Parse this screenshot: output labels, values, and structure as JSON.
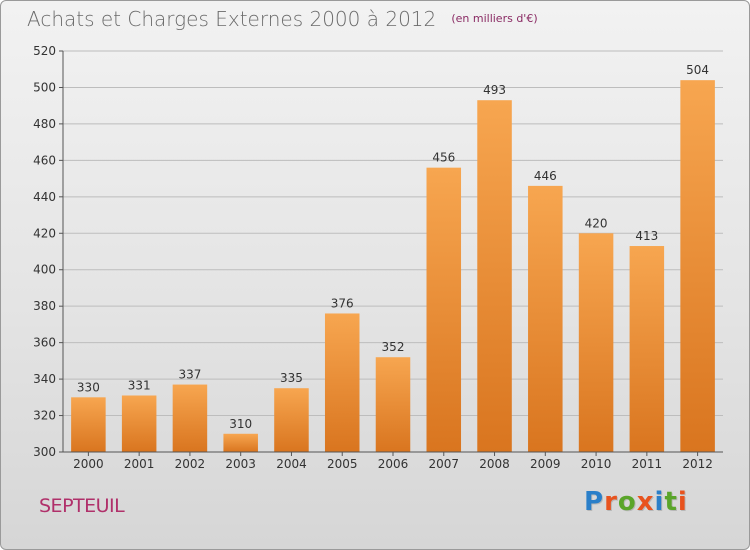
{
  "title": "Achats et Charges Externes 2000 à 2012",
  "subtitle": "(en milliers d'€)",
  "commune": "SEPTEUIL",
  "logo": {
    "text": "Proxiti",
    "colors": [
      "#2a7fc9",
      "#e8531e",
      "#5aa52a",
      "#e8531e",
      "#2a7fc9",
      "#5aa52a",
      "#e8531e"
    ]
  },
  "colors": {
    "bar_top": "#f7a650",
    "bar_bottom": "#d9751f",
    "axis": "#555555",
    "grid": "#bdbdbd",
    "tick_label": "#333333",
    "value_label": "#333333"
  },
  "chart_data": {
    "type": "bar",
    "title": "Achats et Charges Externes 2000 à 2012",
    "subtitle": "(en milliers d'€)",
    "categories": [
      "2000",
      "2001",
      "2002",
      "2003",
      "2004",
      "2005",
      "2006",
      "2007",
      "2008",
      "2009",
      "2010",
      "2011",
      "2012"
    ],
    "values": [
      330,
      331,
      337,
      310,
      335,
      376,
      352,
      456,
      493,
      446,
      420,
      413,
      504
    ],
    "ylim": [
      300,
      520
    ],
    "yticks": [
      300,
      320,
      340,
      360,
      380,
      400,
      420,
      440,
      460,
      480,
      500,
      520
    ],
    "grid": true,
    "legend": "none",
    "xlabel": "",
    "ylabel": ""
  }
}
